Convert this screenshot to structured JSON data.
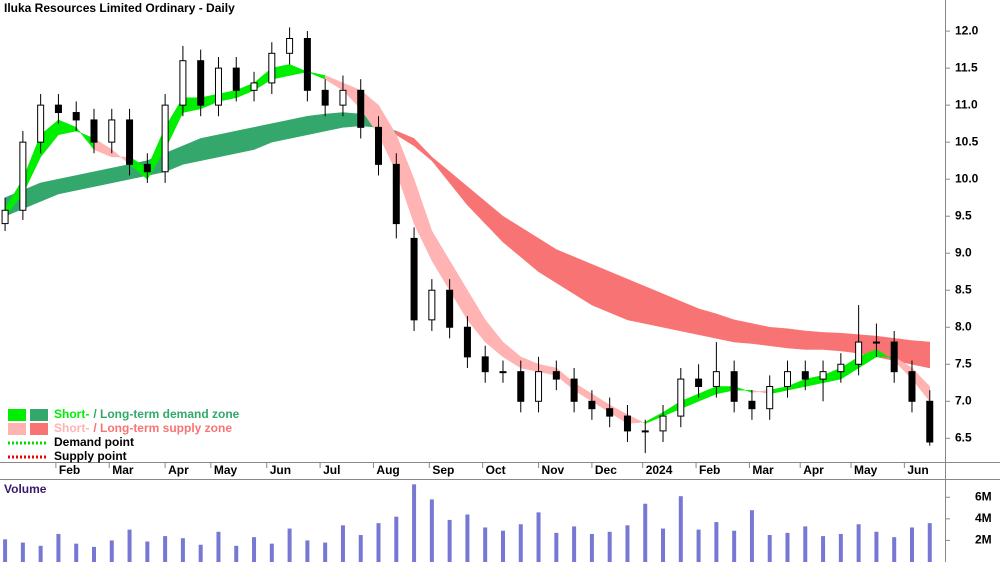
{
  "chart_data": {
    "type": "candlestick",
    "title": "Iluka Resources Limited Ordinary - Daily",
    "x": [
      0,
      7,
      14,
      21,
      28,
      35,
      42,
      49,
      56,
      63,
      70,
      77,
      84,
      91,
      98,
      105,
      112,
      119,
      126,
      133,
      140,
      147,
      154,
      161,
      168,
      175,
      182,
      189,
      196,
      203,
      210,
      217,
      224,
      231,
      238,
      245,
      252,
      259,
      266,
      273,
      280,
      287,
      294,
      301,
      308,
      315,
      322,
      329,
      336,
      343,
      350,
      357,
      364
    ],
    "open": [
      9.4,
      9.58,
      10.5,
      11.0,
      10.9,
      10.8,
      10.5,
      10.8,
      10.2,
      10.1,
      11.0,
      11.6,
      11.0,
      11.5,
      11.2,
      11.3,
      11.7,
      11.9,
      11.2,
      11.0,
      11.2,
      10.7,
      10.2,
      9.2,
      8.1,
      8.5,
      8.0,
      7.6,
      7.4,
      7.4,
      7.0,
      7.4,
      7.3,
      7.0,
      6.9,
      6.8,
      6.6,
      6.6,
      6.8,
      7.3,
      7.2,
      7.4,
      7.0,
      6.9,
      7.2,
      7.4,
      7.3,
      7.4,
      7.5,
      7.8,
      7.8,
      7.4,
      7.0
    ],
    "high": [
      9.75,
      10.65,
      11.15,
      11.15,
      11.05,
      10.95,
      10.95,
      10.95,
      10.35,
      11.15,
      11.8,
      11.75,
      11.65,
      11.65,
      11.45,
      11.85,
      12.05,
      12.0,
      11.35,
      11.4,
      11.35,
      10.85,
      10.35,
      9.35,
      8.65,
      8.65,
      8.15,
      7.75,
      7.55,
      7.55,
      7.6,
      7.55,
      7.45,
      7.15,
      7.05,
      6.95,
      6.75,
      6.95,
      7.45,
      7.5,
      7.8,
      7.55,
      7.15,
      7.35,
      7.55,
      7.55,
      7.55,
      7.65,
      8.3,
      8.05,
      7.95,
      7.55,
      7.15
    ],
    "low": [
      9.3,
      9.45,
      10.35,
      10.75,
      10.65,
      10.35,
      10.35,
      10.05,
      9.95,
      9.95,
      10.85,
      10.85,
      10.85,
      11.05,
      11.05,
      11.15,
      11.55,
      11.05,
      10.85,
      10.85,
      10.55,
      10.05,
      9.2,
      7.95,
      7.95,
      7.85,
      7.45,
      7.25,
      7.25,
      6.85,
      6.85,
      7.15,
      6.85,
      6.75,
      6.65,
      6.45,
      6.3,
      6.45,
      6.65,
      7.05,
      7.05,
      6.85,
      6.75,
      6.75,
      7.05,
      7.15,
      7.0,
      7.25,
      7.35,
      7.6,
      7.25,
      6.85,
      6.4
    ],
    "close": [
      9.58,
      10.5,
      11.0,
      10.9,
      10.8,
      10.5,
      10.8,
      10.2,
      10.1,
      11.0,
      11.6,
      11.0,
      11.5,
      11.2,
      11.3,
      11.7,
      11.9,
      11.2,
      11.0,
      11.2,
      10.7,
      10.2,
      9.4,
      8.1,
      8.5,
      8.0,
      7.6,
      7.4,
      7.4,
      7.0,
      7.4,
      7.3,
      7.0,
      6.9,
      6.8,
      6.6,
      6.6,
      6.8,
      7.3,
      7.2,
      7.4,
      7.0,
      6.9,
      7.2,
      7.4,
      7.3,
      7.4,
      7.5,
      7.8,
      7.8,
      7.4,
      7.0,
      6.45
    ],
    "xlim": [
      -2,
      370
    ],
    "xticks": [
      {
        "value": 20,
        "label": "Feb"
      },
      {
        "value": 41,
        "label": "Mar"
      },
      {
        "value": 63,
        "label": "Apr"
      },
      {
        "value": 81,
        "label": "May"
      },
      {
        "value": 103,
        "label": "Jun"
      },
      {
        "value": 124,
        "label": "Jul"
      },
      {
        "value": 145,
        "label": "Aug"
      },
      {
        "value": 167,
        "label": "Sep"
      },
      {
        "value": 188,
        "label": "Oct"
      },
      {
        "value": 210,
        "label": "Nov"
      },
      {
        "value": 231,
        "label": "Dec"
      },
      {
        "value": 251,
        "label": "2024"
      },
      {
        "value": 272,
        "label": "Feb"
      },
      {
        "value": 293,
        "label": "Mar"
      },
      {
        "value": 313,
        "label": "Apr"
      },
      {
        "value": 333,
        "label": "May"
      },
      {
        "value": 354,
        "label": "Jun"
      }
    ],
    "ylim": [
      6.18,
      12.42
    ],
    "yticks": [
      {
        "value": 12,
        "label": "12.0"
      },
      11.5,
      {
        "value": 11,
        "label": "11.0"
      },
      10.5,
      {
        "value": 10,
        "label": "10.0"
      },
      9.5,
      {
        "value": 9,
        "label": "9.0"
      },
      8.5,
      {
        "value": 8,
        "label": "8.0"
      },
      7.5,
      {
        "value": 7,
        "label": "7.0"
      },
      6.5
    ],
    "ribbons": [
      {
        "a": [
          9.75,
          9.85,
          9.95,
          10.0,
          10.05,
          10.1,
          10.15,
          10.2,
          10.25,
          10.35,
          10.45,
          10.55,
          10.6,
          10.65,
          10.7,
          10.75,
          10.8,
          10.85,
          10.88,
          10.9,
          10.88,
          10.8,
          10.6,
          10.45,
          10.25,
          9.95,
          9.65,
          9.4,
          9.15,
          8.95,
          8.75,
          8.6,
          8.45,
          8.3,
          8.2,
          8.1,
          8.05,
          8.0,
          7.95,
          7.9,
          7.85,
          7.8,
          7.78,
          7.75,
          7.72,
          7.7,
          7.7,
          7.68,
          7.65,
          7.6,
          7.55,
          7.5,
          7.45
        ],
        "b": [
          9.5,
          9.6,
          9.7,
          9.8,
          9.85,
          9.9,
          9.95,
          10.0,
          10.05,
          10.1,
          10.2,
          10.25,
          10.3,
          10.35,
          10.4,
          10.5,
          10.55,
          10.6,
          10.65,
          10.7,
          10.72,
          10.7,
          10.65,
          10.55,
          10.3,
          10.1,
          9.9,
          9.7,
          9.5,
          9.35,
          9.2,
          9.05,
          8.95,
          8.85,
          8.75,
          8.65,
          8.55,
          8.45,
          8.35,
          8.25,
          8.18,
          8.1,
          8.05,
          8.0,
          7.98,
          7.95,
          7.93,
          7.92,
          7.9,
          7.88,
          7.85,
          7.82,
          7.8
        ],
        "up_color": "#34a86c",
        "down_color": "#f87474"
      },
      {
        "a": [
          9.6,
          10.0,
          10.6,
          10.8,
          10.7,
          10.4,
          10.3,
          10.3,
          10.15,
          10.7,
          11.1,
          11.1,
          11.15,
          11.2,
          11.3,
          11.5,
          11.55,
          11.45,
          11.35,
          11.2,
          10.95,
          10.6,
          10.1,
          9.4,
          8.9,
          8.5,
          8.1,
          7.8,
          7.6,
          7.45,
          7.4,
          7.35,
          7.15,
          7.0,
          6.85,
          6.7,
          6.72,
          6.85,
          7.0,
          7.1,
          7.2,
          7.2,
          7.12,
          7.15,
          7.2,
          7.3,
          7.35,
          7.45,
          7.6,
          7.7,
          7.55,
          7.3,
          7.0
        ],
        "b": [
          9.5,
          9.8,
          10.3,
          10.6,
          10.65,
          10.55,
          10.4,
          10.2,
          10.0,
          10.4,
          10.9,
          10.95,
          11.05,
          11.1,
          11.2,
          11.35,
          11.4,
          11.45,
          11.4,
          11.3,
          11.2,
          11.0,
          10.6,
          10.0,
          9.3,
          8.9,
          8.5,
          8.1,
          7.8,
          7.6,
          7.5,
          7.45,
          7.25,
          7.1,
          6.95,
          6.82,
          6.7,
          6.8,
          6.9,
          7.0,
          7.1,
          7.15,
          7.15,
          7.1,
          7.15,
          7.2,
          7.25,
          7.3,
          7.45,
          7.6,
          7.6,
          7.45,
          7.2
        ],
        "up_color": "#00ee00",
        "down_color": "#ffb3b3"
      }
    ],
    "legend": [
      {
        "colors": [
          "#00ee00",
          "#34a86c"
        ],
        "parts": [
          "Short-",
          "/ Long-term demand zone"
        ]
      },
      {
        "colors": [
          "#ffb3b3",
          "#f87474"
        ],
        "parts": [
          "Short-",
          "/ Long-term supply zone"
        ]
      },
      {
        "colors": [
          "#00dd00"
        ],
        "parts": [
          "Demand point"
        ]
      },
      {
        "colors": [
          "#ee0000"
        ],
        "parts": [
          "Supply point"
        ]
      }
    ],
    "volume": {
      "type": "bar",
      "label": "Volume",
      "color": "#7777d4",
      "values": [
        2100000,
        1800000,
        1500000,
        2600000,
        1700000,
        1400000,
        2000000,
        3000000,
        1900000,
        2400000,
        2200000,
        1600000,
        2800000,
        1500000,
        2300000,
        1700000,
        3100000,
        2000000,
        1800000,
        3400000,
        2500000,
        3600000,
        4200000,
        7200000,
        5800000,
        3900000,
        4400000,
        3200000,
        2900000,
        3500000,
        4600000,
        2700000,
        3300000,
        2600000,
        2800000,
        3400000,
        5400000,
        3100000,
        6100000,
        3000000,
        3700000,
        2900000,
        4800000,
        2500000,
        2700000,
        3300000,
        2400000,
        2600000,
        3500000,
        2800000,
        2300000,
        3200000,
        3600000
      ],
      "ylim": [
        0,
        7600000
      ],
      "yticks": [
        {
          "value": 2000000,
          "label": "2M"
        },
        {
          "value": 4000000,
          "label": "4M"
        },
        {
          "value": 6000000,
          "label": "6M"
        }
      ]
    }
  }
}
